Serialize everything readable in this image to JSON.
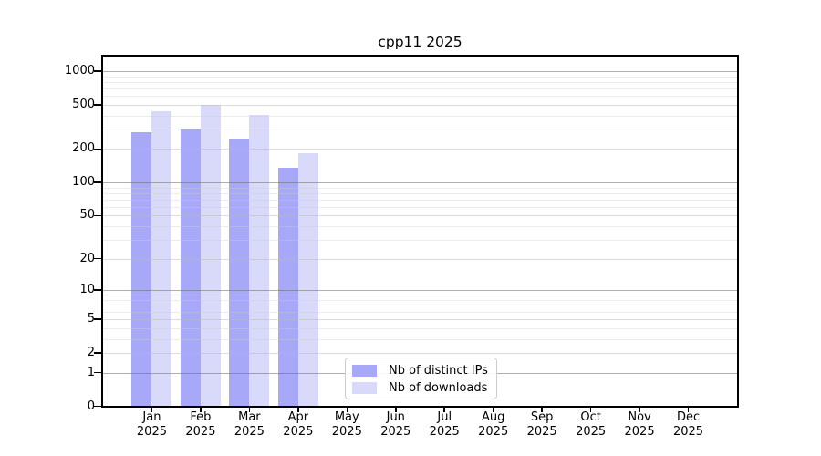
{
  "chart_data": {
    "type": "bar",
    "title": "cpp11 2025",
    "categories": [
      "Jan",
      "Feb",
      "Mar",
      "Apr",
      "May",
      "Jun",
      "Jul",
      "Aug",
      "Sep",
      "Oct",
      "Nov",
      "Dec"
    ],
    "category_year": "2025",
    "series": [
      {
        "name": "Nb of distinct IPs",
        "color": "#a8a8f8",
        "values": [
          285,
          305,
          250,
          135,
          null,
          null,
          null,
          null,
          null,
          null,
          null,
          null
        ]
      },
      {
        "name": "Nb of downloads",
        "color": "#d9d9fa",
        "values": [
          440,
          500,
          405,
          182,
          null,
          null,
          null,
          null,
          null,
          null,
          null,
          null
        ]
      }
    ],
    "y_axis": {
      "ticks": [
        0,
        1,
        2,
        5,
        10,
        20,
        50,
        100,
        200,
        500,
        1000
      ],
      "scale": "log10(value+1)",
      "top_value": 1375
    },
    "grid": {
      "major": [
        1,
        10,
        100,
        1000
      ],
      "mid": [
        2,
        5,
        20,
        50,
        200,
        500
      ],
      "minor": [
        3,
        4,
        6,
        7,
        8,
        9,
        30,
        40,
        60,
        70,
        80,
        90,
        300,
        400,
        600,
        700,
        800,
        900
      ]
    },
    "legend_position": "bottom-center",
    "colors": {
      "frame": "#000000",
      "major_grid": "rgba(110,110,110,0.55)",
      "mid_grid": "rgba(185,185,185,0.5)",
      "minor_grid": "rgba(205,205,205,0.38)"
    }
  }
}
